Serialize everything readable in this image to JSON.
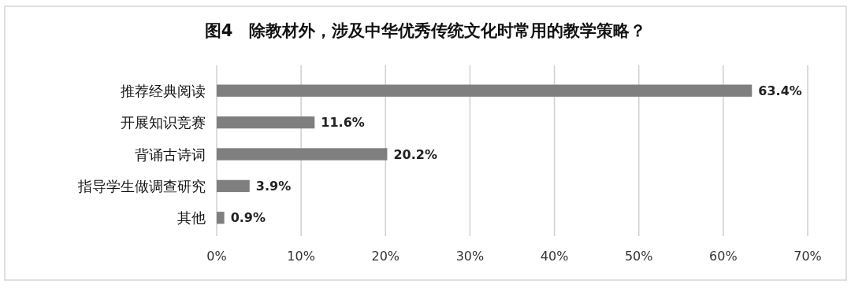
{
  "chart_data": {
    "type": "bar",
    "orientation": "horizontal",
    "title": "图4　除教材外，涉及中华优秀传统文化时常用的教学策略？",
    "categories": [
      "推荐经典阅读",
      "开展知识竞赛",
      "背诵古诗词",
      "指导学生做调查研究",
      "其他"
    ],
    "values": [
      63.4,
      11.6,
      20.2,
      3.9,
      0.9
    ],
    "value_labels": [
      "63.4%",
      "11.6%",
      "20.2%",
      "3.9%",
      "0.9%"
    ],
    "color": "#7f7f7f",
    "xlim": [
      0,
      70
    ],
    "xticks": [
      {
        "value": 0,
        "label": "0%"
      },
      {
        "value": 10,
        "label": "10%"
      },
      {
        "value": 20,
        "label": "20%"
      },
      {
        "value": 30,
        "label": "30%"
      },
      {
        "value": 40,
        "label": "40%"
      },
      {
        "value": 50,
        "label": "50%"
      },
      {
        "value": 60,
        "label": "60%"
      },
      {
        "value": 70,
        "label": "70%"
      }
    ],
    "grid": "x"
  }
}
